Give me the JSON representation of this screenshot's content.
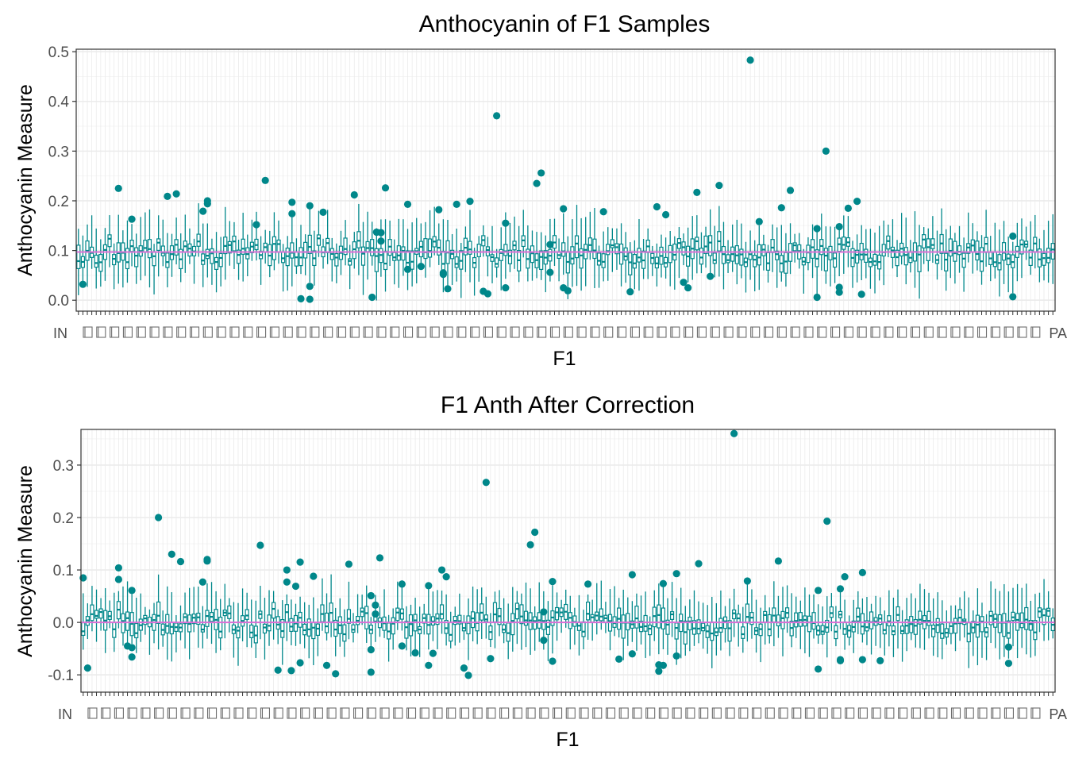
{
  "colors": {
    "box": "#00878A",
    "reference_line": "#DA70D6",
    "grid_major": "#EBEBEB",
    "grid_minor": "#F5F5F5",
    "panel_border": "#333333",
    "tick_text": "#4D4D4D"
  },
  "chart_data": [
    {
      "type": "box",
      "title": "Anthocyanin of F1 Samples",
      "xlabel": "F1",
      "ylabel": "Anthocyanin Measure",
      "ylim": [
        -0.022,
        0.505
      ],
      "yticks": [
        0.0,
        0.1,
        0.2,
        0.3,
        0.4,
        0.5
      ],
      "ytick_labels": [
        "0.0",
        "0.1",
        "0.2",
        "0.3",
        "0.4",
        "0.5"
      ],
      "reference_line": 0.097,
      "grid": true,
      "n_categories": 220,
      "category_labels_overlapping": true,
      "x_tick_label_start": "IN",
      "x_tick_label_end": "PA",
      "outliers": [
        {
          "i": 1,
          "y": 0.032
        },
        {
          "i": 9,
          "y": 0.225
        },
        {
          "i": 12,
          "y": 0.163
        },
        {
          "i": 20,
          "y": 0.209
        },
        {
          "i": 22,
          "y": 0.214
        },
        {
          "i": 28,
          "y": 0.179
        },
        {
          "i": 29,
          "y": 0.2
        },
        {
          "i": 29,
          "y": 0.194
        },
        {
          "i": 40,
          "y": 0.152
        },
        {
          "i": 42,
          "y": 0.241
        },
        {
          "i": 48,
          "y": 0.197
        },
        {
          "i": 48,
          "y": 0.174
        },
        {
          "i": 50,
          "y": 0.003
        },
        {
          "i": 52,
          "y": 0.19
        },
        {
          "i": 52,
          "y": 0.028
        },
        {
          "i": 52,
          "y": 0.002
        },
        {
          "i": 55,
          "y": 0.177
        },
        {
          "i": 62,
          "y": 0.212
        },
        {
          "i": 66,
          "y": 0.006
        },
        {
          "i": 67,
          "y": 0.137
        },
        {
          "i": 68,
          "y": 0.136
        },
        {
          "i": 68,
          "y": 0.119
        },
        {
          "i": 69,
          "y": 0.226
        },
        {
          "i": 74,
          "y": 0.193
        },
        {
          "i": 74,
          "y": 0.062
        },
        {
          "i": 77,
          "y": 0.068
        },
        {
          "i": 81,
          "y": 0.182
        },
        {
          "i": 82,
          "y": 0.055
        },
        {
          "i": 82,
          "y": 0.052
        },
        {
          "i": 83,
          "y": 0.023
        },
        {
          "i": 85,
          "y": 0.193
        },
        {
          "i": 88,
          "y": 0.199
        },
        {
          "i": 91,
          "y": 0.018
        },
        {
          "i": 92,
          "y": 0.013
        },
        {
          "i": 94,
          "y": 0.371
        },
        {
          "i": 96,
          "y": 0.155
        },
        {
          "i": 96,
          "y": 0.025
        },
        {
          "i": 103,
          "y": 0.235
        },
        {
          "i": 104,
          "y": 0.256
        },
        {
          "i": 106,
          "y": 0.112
        },
        {
          "i": 106,
          "y": 0.056
        },
        {
          "i": 109,
          "y": 0.184
        },
        {
          "i": 109,
          "y": 0.025
        },
        {
          "i": 110,
          "y": 0.019
        },
        {
          "i": 118,
          "y": 0.178
        },
        {
          "i": 124,
          "y": 0.017
        },
        {
          "i": 130,
          "y": 0.188
        },
        {
          "i": 132,
          "y": 0.172
        },
        {
          "i": 136,
          "y": 0.036
        },
        {
          "i": 137,
          "y": 0.025
        },
        {
          "i": 139,
          "y": 0.217
        },
        {
          "i": 142,
          "y": 0.048
        },
        {
          "i": 144,
          "y": 0.231
        },
        {
          "i": 151,
          "y": 0.483
        },
        {
          "i": 153,
          "y": 0.158
        },
        {
          "i": 158,
          "y": 0.186
        },
        {
          "i": 160,
          "y": 0.221
        },
        {
          "i": 166,
          "y": 0.144
        },
        {
          "i": 166,
          "y": 0.006
        },
        {
          "i": 168,
          "y": 0.3
        },
        {
          "i": 171,
          "y": 0.148
        },
        {
          "i": 171,
          "y": 0.026
        },
        {
          "i": 171,
          "y": 0.016
        },
        {
          "i": 173,
          "y": 0.185
        },
        {
          "i": 175,
          "y": 0.199
        },
        {
          "i": 176,
          "y": 0.012
        },
        {
          "i": 210,
          "y": 0.129
        },
        {
          "i": 210,
          "y": 0.007
        }
      ]
    },
    {
      "type": "box",
      "title": "F1 Anth After Correction",
      "xlabel": "F1",
      "ylabel": "Anthocyanin Measure",
      "ylim": [
        -0.133,
        0.368
      ],
      "yticks": [
        -0.1,
        0.0,
        0.1,
        0.2,
        0.3
      ],
      "ytick_labels": [
        "-0.1",
        "0.0",
        "0.1",
        "0.2",
        "0.3"
      ],
      "reference_line": 0.0,
      "grid": true,
      "n_categories": 220,
      "category_labels_overlapping": true,
      "x_tick_label_start": "IN",
      "x_tick_label_end": "PA",
      "outliers": [
        {
          "i": 0,
          "y": 0.085
        },
        {
          "i": 1,
          "y": -0.087
        },
        {
          "i": 8,
          "y": 0.104
        },
        {
          "i": 8,
          "y": 0.082
        },
        {
          "i": 10,
          "y": -0.045
        },
        {
          "i": 11,
          "y": 0.061
        },
        {
          "i": 11,
          "y": -0.048
        },
        {
          "i": 11,
          "y": -0.066
        },
        {
          "i": 17,
          "y": 0.2
        },
        {
          "i": 20,
          "y": 0.13
        },
        {
          "i": 22,
          "y": 0.116
        },
        {
          "i": 27,
          "y": 0.077
        },
        {
          "i": 28,
          "y": 0.12
        },
        {
          "i": 28,
          "y": 0.117
        },
        {
          "i": 40,
          "y": 0.147
        },
        {
          "i": 44,
          "y": -0.091
        },
        {
          "i": 46,
          "y": 0.1
        },
        {
          "i": 46,
          "y": 0.077
        },
        {
          "i": 47,
          "y": -0.092
        },
        {
          "i": 48,
          "y": 0.069
        },
        {
          "i": 49,
          "y": 0.115
        },
        {
          "i": 49,
          "y": -0.077
        },
        {
          "i": 52,
          "y": 0.088
        },
        {
          "i": 55,
          "y": -0.082
        },
        {
          "i": 57,
          "y": -0.098
        },
        {
          "i": 60,
          "y": 0.111
        },
        {
          "i": 65,
          "y": 0.051
        },
        {
          "i": 65,
          "y": -0.052
        },
        {
          "i": 65,
          "y": -0.095
        },
        {
          "i": 66,
          "y": 0.033
        },
        {
          "i": 66,
          "y": 0.016
        },
        {
          "i": 67,
          "y": 0.123
        },
        {
          "i": 72,
          "y": 0.073
        },
        {
          "i": 72,
          "y": -0.045
        },
        {
          "i": 75,
          "y": -0.058
        },
        {
          "i": 78,
          "y": 0.07
        },
        {
          "i": 78,
          "y": -0.082
        },
        {
          "i": 79,
          "y": -0.059
        },
        {
          "i": 81,
          "y": 0.1
        },
        {
          "i": 82,
          "y": 0.087
        },
        {
          "i": 86,
          "y": -0.087
        },
        {
          "i": 87,
          "y": -0.101
        },
        {
          "i": 91,
          "y": 0.267
        },
        {
          "i": 92,
          "y": -0.069
        },
        {
          "i": 101,
          "y": 0.148
        },
        {
          "i": 102,
          "y": 0.172
        },
        {
          "i": 104,
          "y": 0.02
        },
        {
          "i": 104,
          "y": -0.034
        },
        {
          "i": 106,
          "y": 0.078
        },
        {
          "i": 106,
          "y": -0.074
        },
        {
          "i": 114,
          "y": 0.073
        },
        {
          "i": 121,
          "y": -0.07
        },
        {
          "i": 124,
          "y": 0.091
        },
        {
          "i": 124,
          "y": -0.06
        },
        {
          "i": 130,
          "y": -0.081
        },
        {
          "i": 130,
          "y": -0.093
        },
        {
          "i": 131,
          "y": 0.074
        },
        {
          "i": 131,
          "y": -0.082
        },
        {
          "i": 134,
          "y": 0.093
        },
        {
          "i": 134,
          "y": -0.064
        },
        {
          "i": 139,
          "y": 0.112
        },
        {
          "i": 147,
          "y": 0.36
        },
        {
          "i": 150,
          "y": 0.079
        },
        {
          "i": 157,
          "y": 0.117
        },
        {
          "i": 166,
          "y": 0.061
        },
        {
          "i": 166,
          "y": -0.089
        },
        {
          "i": 168,
          "y": 0.193
        },
        {
          "i": 171,
          "y": 0.064
        },
        {
          "i": 171,
          "y": -0.071
        },
        {
          "i": 171,
          "y": -0.073
        },
        {
          "i": 172,
          "y": 0.087
        },
        {
          "i": 176,
          "y": 0.095
        },
        {
          "i": 176,
          "y": -0.071
        },
        {
          "i": 180,
          "y": -0.073
        },
        {
          "i": 209,
          "y": -0.047
        },
        {
          "i": 209,
          "y": -0.078
        }
      ]
    }
  ]
}
